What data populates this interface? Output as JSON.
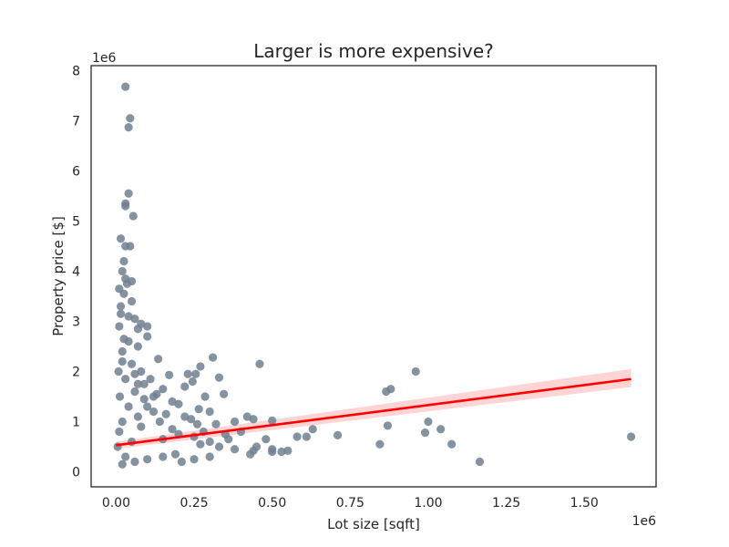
{
  "chart_data": {
    "type": "scatter",
    "title": "Larger is more expensive?",
    "xlabel": "Lot size [sqft]",
    "ylabel": "Property price [$]",
    "x_offset_label": "1e6",
    "y_offset_label": "1e6",
    "x_scale_factor": 1000000,
    "y_scale_factor": 1000000,
    "xlim": [
      -0.08,
      1.73
    ],
    "ylim": [
      -0.3,
      8.1
    ],
    "xticks": [
      0.0,
      0.25,
      0.5,
      0.75,
      1.0,
      1.25,
      1.5
    ],
    "xtick_labels": [
      "0.00",
      "0.25",
      "0.50",
      "0.75",
      "1.00",
      "1.25",
      "1.50"
    ],
    "yticks": [
      0,
      1,
      2,
      3,
      4,
      5,
      6,
      7,
      8
    ],
    "ytick_labels": [
      "0",
      "1",
      "2",
      "3",
      "4",
      "5",
      "6",
      "7",
      "8"
    ],
    "grid": false,
    "legend": "none",
    "point_color": "#708090",
    "regression": {
      "color": "#ff0000",
      "band_color": "#ffcccc",
      "x": [
        0.0,
        1.65
      ],
      "y": [
        0.53,
        1.85
      ],
      "ci_lower": [
        0.46,
        1.69
      ],
      "ci_upper": [
        0.6,
        2.05
      ]
    },
    "points": [
      [
        0.03,
        7.68
      ],
      [
        0.045,
        7.05
      ],
      [
        0.04,
        6.87
      ],
      [
        0.04,
        5.55
      ],
      [
        0.03,
        5.35
      ],
      [
        0.03,
        5.3
      ],
      [
        0.055,
        5.1
      ],
      [
        0.015,
        4.65
      ],
      [
        0.03,
        4.5
      ],
      [
        0.045,
        4.5
      ],
      [
        0.025,
        4.2
      ],
      [
        0.02,
        4.0
      ],
      [
        0.03,
        3.85
      ],
      [
        0.05,
        3.8
      ],
      [
        0.035,
        3.75
      ],
      [
        0.01,
        3.65
      ],
      [
        0.025,
        3.55
      ],
      [
        0.05,
        3.4
      ],
      [
        0.015,
        3.3
      ],
      [
        0.04,
        3.1
      ],
      [
        0.06,
        3.05
      ],
      [
        0.08,
        2.95
      ],
      [
        0.1,
        2.9
      ],
      [
        0.07,
        2.85
      ],
      [
        0.1,
        2.7
      ],
      [
        0.025,
        2.65
      ],
      [
        0.07,
        2.5
      ],
      [
        0.02,
        2.4
      ],
      [
        0.31,
        2.28
      ],
      [
        0.135,
        2.25
      ],
      [
        0.46,
        2.15
      ],
      [
        0.05,
        2.15
      ],
      [
        0.27,
        2.1
      ],
      [
        0.08,
        2.0
      ],
      [
        0.23,
        1.95
      ],
      [
        0.255,
        1.95
      ],
      [
        0.17,
        1.93
      ],
      [
        0.33,
        1.88
      ],
      [
        0.96,
        2.0
      ],
      [
        0.11,
        1.85
      ],
      [
        0.245,
        1.8
      ],
      [
        0.07,
        1.75
      ],
      [
        0.22,
        1.7
      ],
      [
        0.88,
        1.65
      ],
      [
        0.865,
        1.6
      ],
      [
        0.15,
        1.65
      ],
      [
        0.285,
        1.5
      ],
      [
        0.18,
        1.4
      ],
      [
        0.345,
        1.55
      ],
      [
        0.06,
        1.6
      ],
      [
        0.09,
        1.45
      ],
      [
        0.12,
        1.5
      ],
      [
        0.2,
        1.35
      ],
      [
        0.265,
        1.25
      ],
      [
        0.3,
        1.2
      ],
      [
        0.42,
        1.1
      ],
      [
        0.44,
        1.05
      ],
      [
        0.5,
        1.02
      ],
      [
        1.0,
        1.0
      ],
      [
        0.87,
        0.92
      ],
      [
        0.63,
        0.85
      ],
      [
        1.04,
        0.85
      ],
      [
        0.99,
        0.78
      ],
      [
        0.71,
        0.73
      ],
      [
        0.61,
        0.7
      ],
      [
        0.58,
        0.7
      ],
      [
        1.65,
        0.7
      ],
      [
        0.35,
        0.75
      ],
      [
        0.4,
        0.8
      ],
      [
        0.36,
        0.65
      ],
      [
        0.3,
        0.6
      ],
      [
        0.27,
        0.55
      ],
      [
        0.33,
        0.5
      ],
      [
        0.38,
        0.45
      ],
      [
        0.45,
        0.5
      ],
      [
        0.48,
        0.65
      ],
      [
        0.5,
        0.45
      ],
      [
        0.53,
        0.4
      ],
      [
        0.55,
        0.42
      ],
      [
        0.5,
        0.4
      ],
      [
        0.845,
        0.55
      ],
      [
        1.075,
        0.55
      ],
      [
        1.165,
        0.2
      ],
      [
        0.43,
        0.35
      ],
      [
        0.44,
        0.42
      ],
      [
        0.3,
        0.3
      ],
      [
        0.25,
        0.25
      ],
      [
        0.21,
        0.2
      ],
      [
        0.19,
        0.35
      ],
      [
        0.15,
        0.3
      ],
      [
        0.1,
        0.25
      ],
      [
        0.06,
        0.2
      ],
      [
        0.02,
        0.15
      ],
      [
        0.03,
        0.3
      ],
      [
        0.08,
        0.9
      ],
      [
        0.14,
        1.0
      ],
      [
        0.12,
        1.2
      ],
      [
        0.16,
        1.15
      ],
      [
        0.22,
        1.1
      ],
      [
        0.26,
        0.95
      ],
      [
        0.24,
        1.05
      ],
      [
        0.18,
        0.85
      ],
      [
        0.28,
        0.8
      ],
      [
        0.2,
        0.75
      ],
      [
        0.15,
        0.65
      ],
      [
        0.25,
        0.7
      ],
      [
        0.32,
        0.95
      ],
      [
        0.38,
        1.0
      ],
      [
        0.05,
        0.6
      ],
      [
        0.04,
        1.3
      ],
      [
        0.03,
        1.85
      ],
      [
        0.02,
        2.2
      ],
      [
        0.01,
        2.9
      ],
      [
        0.015,
        3.15
      ],
      [
        0.04,
        2.6
      ],
      [
        0.06,
        1.95
      ],
      [
        0.09,
        1.75
      ],
      [
        0.13,
        1.55
      ],
      [
        0.1,
        1.3
      ],
      [
        0.07,
        1.1
      ],
      [
        0.005,
        0.5
      ],
      [
        0.01,
        0.8
      ],
      [
        0.02,
        1.0
      ],
      [
        0.012,
        1.5
      ],
      [
        0.008,
        2.0
      ]
    ]
  }
}
